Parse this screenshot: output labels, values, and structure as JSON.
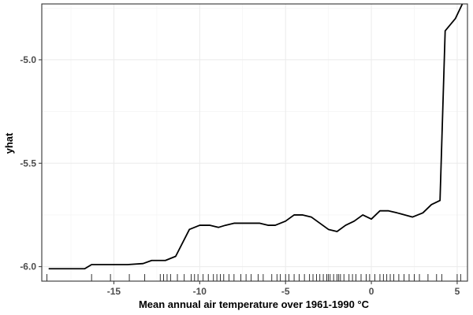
{
  "chart_data": {
    "type": "line",
    "title": "",
    "xlabel": "Mean annual air temperature over 1961-1990 °C",
    "ylabel": "yhat",
    "xlim": [
      -19.2,
      5.6
    ],
    "ylim": [
      -6.07,
      -4.73
    ],
    "x_ticks": [
      -15,
      -10,
      -5,
      0,
      5
    ],
    "x_tick_labels": [
      "-15",
      "-10",
      "-5",
      "0",
      "5"
    ],
    "y_ticks": [
      -6.0,
      -5.5,
      -5.0
    ],
    "y_tick_labels": [
      "-6.0",
      "-5.5",
      "-5.0"
    ],
    "grid": true,
    "series": [
      {
        "x": [
          -18.8,
          -16.7,
          -16.3,
          -14.2,
          -13.3,
          -12.8,
          -12.0,
          -11.4,
          -10.6,
          -10.0,
          -9.4,
          -8.9,
          -8.5,
          -8.0,
          -7.4,
          -6.5,
          -6.0,
          -5.6,
          -5.0,
          -4.5,
          -4.0,
          -3.5,
          -3.0,
          -2.5,
          -2.0,
          -1.5,
          -1.0,
          -0.5,
          0.0,
          0.5,
          1.0,
          1.5,
          2.4,
          3.0,
          3.5,
          4.0,
          4.3,
          4.5,
          4.9,
          5.3
        ],
        "y": [
          -6.01,
          -6.01,
          -5.99,
          -5.99,
          -5.985,
          -5.97,
          -5.97,
          -5.95,
          -5.82,
          -5.8,
          -5.8,
          -5.81,
          -5.8,
          -5.79,
          -5.79,
          -5.79,
          -5.8,
          -5.8,
          -5.78,
          -5.75,
          -5.75,
          -5.76,
          -5.79,
          -5.82,
          -5.83,
          -5.8,
          -5.78,
          -5.75,
          -5.77,
          -5.73,
          -5.73,
          -5.74,
          -5.76,
          -5.74,
          -5.7,
          -5.68,
          -4.86,
          -4.84,
          -4.8,
          -4.73
        ]
      }
    ],
    "rug_x": [
      -18.9,
      -16.3,
      -15.2,
      -14.1,
      -13.2,
      -12.3,
      -12.1,
      -11.9,
      -11.7,
      -11.3,
      -10.9,
      -10.5,
      -10.3,
      -10.1,
      -9.8,
      -9.5,
      -9.2,
      -9.0,
      -8.8,
      -8.6,
      -8.3,
      -8.0,
      -7.6,
      -7.3,
      -7.0,
      -6.6,
      -6.3,
      -5.8,
      -5.5,
      -5.3,
      -5.0,
      -4.8,
      -4.5,
      -4.2,
      -3.9,
      -3.6,
      -3.4,
      -3.2,
      -3.0,
      -2.8,
      -2.6,
      -2.5,
      -2.4,
      -2.2,
      -2.0,
      -1.9,
      -1.8,
      -1.6,
      -1.3,
      -1.1,
      -0.9,
      -0.6,
      -0.3,
      -0.1,
      0.2,
      0.5,
      0.7,
      0.9,
      1.1,
      1.3,
      1.6,
      1.9,
      2.2,
      2.5,
      2.8,
      3.3,
      3.8,
      4.1,
      5.0,
      5.2
    ]
  }
}
